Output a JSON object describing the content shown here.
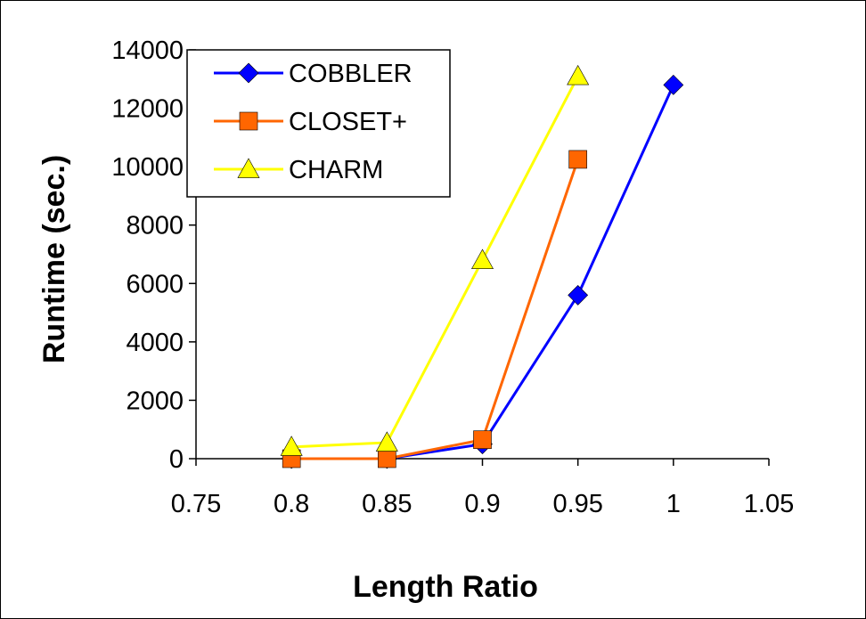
{
  "chart_data": {
    "type": "line",
    "title": "",
    "xlabel": "Length Ratio",
    "ylabel": "Runtime (sec.)",
    "xlim": [
      0.75,
      1.05
    ],
    "ylim": [
      0,
      14000
    ],
    "xticks": [
      0.75,
      0.8,
      0.85,
      0.9,
      0.95,
      1,
      1.05
    ],
    "yticks": [
      0,
      2000,
      4000,
      6000,
      8000,
      10000,
      12000,
      14000
    ],
    "grid": false,
    "legend": "top-left",
    "series": [
      {
        "name": "COBBLER",
        "color": "#0000ff",
        "marker": "diamond",
        "points": [
          [
            0.8,
            0
          ],
          [
            0.85,
            0
          ],
          [
            0.9,
            500
          ],
          [
            0.95,
            5600
          ],
          [
            1.0,
            12800
          ]
        ]
      },
      {
        "name": "CLOSET+",
        "color": "#ff6600",
        "marker": "square",
        "points": [
          [
            0.8,
            0
          ],
          [
            0.85,
            0
          ],
          [
            0.9,
            650
          ],
          [
            0.95,
            10250
          ]
        ]
      },
      {
        "name": "CHARM",
        "color": "#ffff00",
        "marker": "triangle",
        "points": [
          [
            0.8,
            400
          ],
          [
            0.85,
            550
          ],
          [
            0.9,
            6800
          ],
          [
            0.95,
            13100
          ]
        ]
      }
    ]
  }
}
